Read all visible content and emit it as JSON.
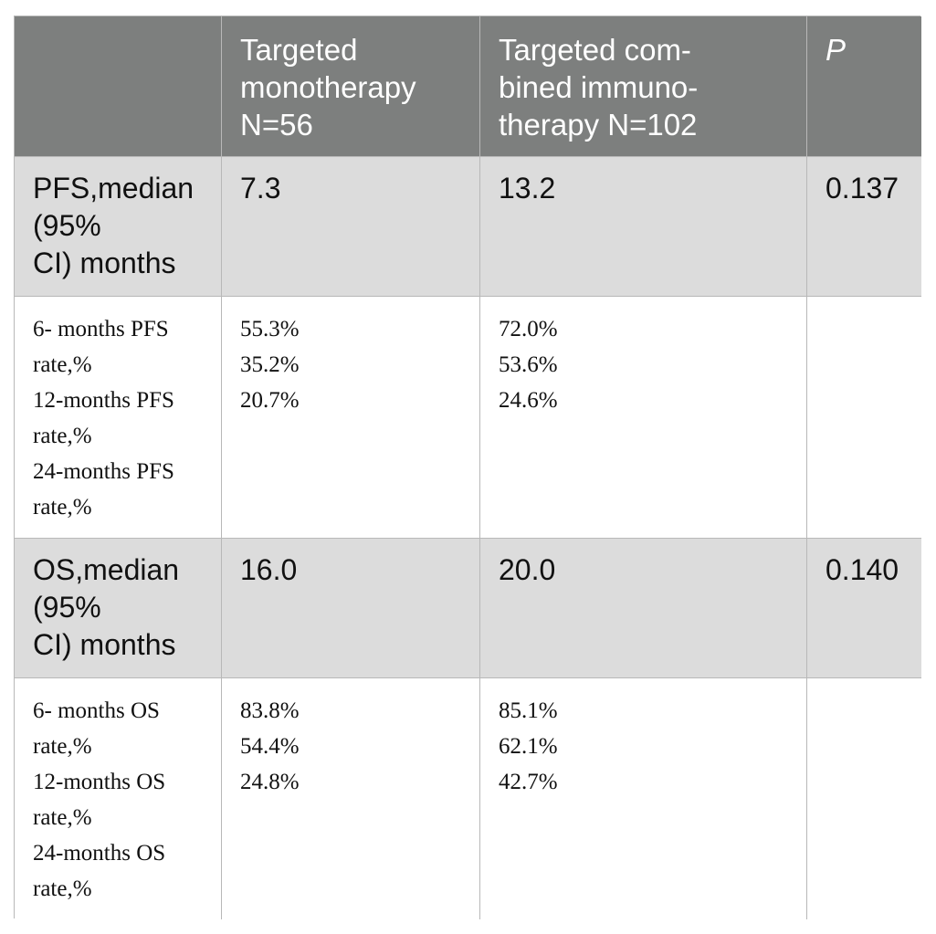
{
  "table": {
    "header": {
      "col0": "",
      "col1_lines": [
        "Targeted",
        "monotherapy",
        "N=56"
      ],
      "col2_lines": [
        "Targeted com-",
        "bined immuno-",
        "therapy N=102"
      ],
      "col3": "P"
    },
    "pfs": {
      "label_lines": [
        "PFS,median",
        "(95%",
        "CI) months"
      ],
      "mono": "7.3",
      "combined": "13.2",
      "p": "0.137"
    },
    "pfs_rates": {
      "label_lines": [
        "6- months PFS",
        "rate,%",
        "12-months PFS",
        "rate,%",
        "24-months PFS",
        "rate,%"
      ],
      "mono": [
        "55.3%",
        "35.2%",
        "20.7%"
      ],
      "combined": [
        "72.0%",
        "53.6%",
        "24.6%"
      ],
      "p": ""
    },
    "os": {
      "label_lines": [
        "OS,median",
        "(95%",
        "CI) months"
      ],
      "mono": "16.0",
      "combined": "20.0",
      "p": "0.140"
    },
    "os_rates": {
      "label_lines": [
        "6- months OS",
        "rate,%",
        "12-months OS",
        "rate,%",
        "24-months OS",
        "rate,%"
      ],
      "mono": [
        "83.8%",
        "54.4%",
        "24.8%"
      ],
      "combined": [
        "85.1%",
        "62.1%",
        "42.7%"
      ],
      "p": ""
    }
  }
}
